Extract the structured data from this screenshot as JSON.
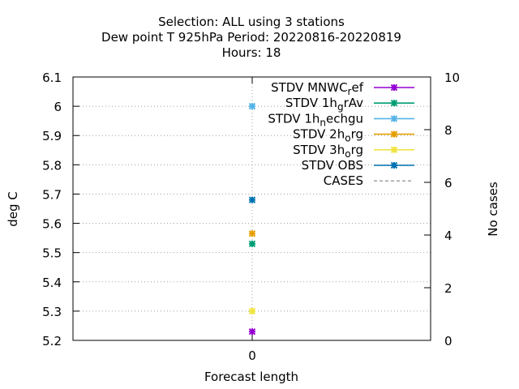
{
  "chart_data": {
    "type": "scatter",
    "title_lines": [
      "Selection: ALL using     3 stations",
      "Dew point T 925hPa   Period: 20220816-20220819",
      "Hours:  18"
    ],
    "xlabel": "Forecast length",
    "ylabel": "deg C",
    "y2label": "No cases",
    "x_ticks": [
      "0"
    ],
    "ylim": [
      5.2,
      6.1
    ],
    "y_ticks": [
      "5.2",
      "5.3",
      "5.4",
      "5.5",
      "5.6",
      "5.7",
      "5.8",
      "5.9",
      "6",
      "6.1"
    ],
    "y2lim": [
      0,
      10
    ],
    "y2_ticks": [
      "0",
      "2",
      "4",
      "6",
      "8",
      "10"
    ],
    "grid": true,
    "legend_position": "top-right",
    "series": [
      {
        "name": "STDV MNWC_ref",
        "label_main": "STDV MNWC",
        "label_sub": "r",
        "label_tail": "ef",
        "color": "#9400d3",
        "marker": "cross",
        "points": [
          {
            "x": 0,
            "y": 5.23
          }
        ]
      },
      {
        "name": "STDV 1h_grAv",
        "label_main": "STDV 1h",
        "label_sub": "g",
        "label_tail": "rAv",
        "color": "#009e73",
        "marker": "cross",
        "points": [
          {
            "x": 0,
            "y": 5.53
          }
        ]
      },
      {
        "name": "STDV 1h_nechgu",
        "label_main": "STDV 1h",
        "label_sub": "n",
        "label_tail": "echgu",
        "color": "#56b4e9",
        "marker": "cross",
        "points": [
          {
            "x": 0,
            "y": 6.0
          }
        ]
      },
      {
        "name": "STDV 2h_org",
        "label_main": "STDV 2h",
        "label_sub": "o",
        "label_tail": "rg",
        "color": "#e69f00",
        "marker": "cross",
        "points": [
          {
            "x": 0,
            "y": 5.565
          }
        ]
      },
      {
        "name": "STDV 3h_org",
        "label_main": "STDV 3h",
        "label_sub": "o",
        "label_tail": "rg",
        "color": "#f0e442",
        "marker": "cross",
        "points": [
          {
            "x": 0,
            "y": 5.3
          }
        ]
      },
      {
        "name": "STDV OBS",
        "label_main": "STDV OBS",
        "label_sub": "",
        "label_tail": "",
        "color": "#0072b2",
        "marker": "cross",
        "points": [
          {
            "x": 0,
            "y": 5.68
          }
        ]
      },
      {
        "name": "CASES",
        "label_main": "CASES",
        "label_sub": "",
        "label_tail": "",
        "color": "#808080",
        "marker": "dashed-line",
        "points": []
      }
    ]
  }
}
